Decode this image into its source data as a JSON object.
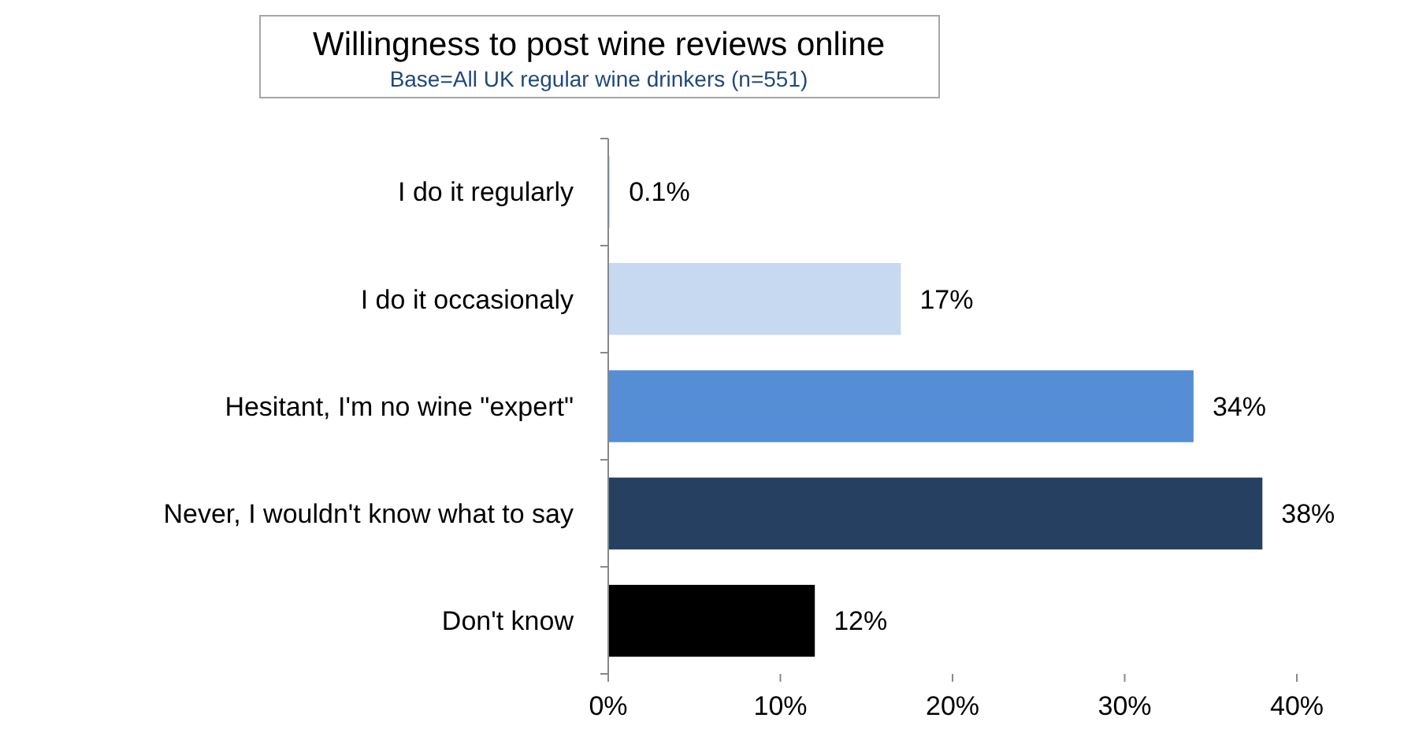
{
  "chart_data": {
    "type": "bar",
    "orientation": "horizontal",
    "title": "Willingness to post wine reviews online",
    "subtitle": "Base=All UK regular wine drinkers (n=551)",
    "categories": [
      "I do it regularly",
      "I do it occasionaly",
      "Hesitant, I'm no wine \"expert\"",
      "Never, I wouldn't know what to say",
      "Don't know"
    ],
    "values": [
      0.1,
      17,
      34,
      38,
      12
    ],
    "colors": [
      "#c6d9f1",
      "#c6d9f1",
      "#558ed5",
      "#254061",
      "#000000"
    ],
    "value_labels": [
      "0.1%",
      "17%",
      "34%",
      "38%",
      "12%"
    ],
    "xlim": [
      0,
      40
    ],
    "xticks": [
      {
        "value": 0,
        "label": "0%"
      },
      {
        "value": 10,
        "label": "10%"
      },
      {
        "value": 20,
        "label": "20%"
      },
      {
        "value": 30,
        "label": "30%"
      },
      {
        "value": 40,
        "label": "40%"
      }
    ],
    "grid": false
  }
}
